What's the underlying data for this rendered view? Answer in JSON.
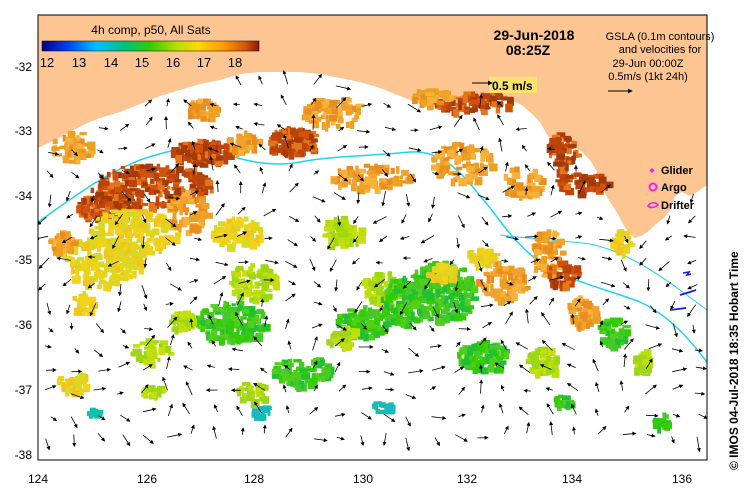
{
  "colorbar": {
    "title": "4h comp, p50, All Sats",
    "ticks": [
      "12",
      "13",
      "14",
      "15",
      "16",
      "17",
      "18"
    ]
  },
  "header": {
    "date": "29-Jun-2018",
    "time": "08:25Z"
  },
  "info": {
    "line1": "GSLA (0.1m contours)",
    "line2": "and velocities for",
    "line3": "29-Jun 00:00Z",
    "line4": "0.5m/s (1kt 24h)"
  },
  "scale_arrow_label": "0.5 m/s",
  "legend": {
    "glider": "Glider",
    "argo": "Argo",
    "drifter": "Drifter"
  },
  "credit": "© IMOS 04-Jul-2018 18:35 Hobart Time",
  "axes": {
    "x_ticks": [
      "124",
      "126",
      "128",
      "130",
      "132",
      "134",
      "136"
    ],
    "y_ticks": [
      "-32",
      "-33",
      "-34",
      "-35",
      "-36",
      "-37",
      "-38"
    ]
  },
  "colors": {
    "land": "#fcc591",
    "ocean": "#ffffff",
    "track": "#22d3ee",
    "contour": "#ffffff",
    "marker": "#ee22ee",
    "drifter_track": "#1a1aee"
  }
}
